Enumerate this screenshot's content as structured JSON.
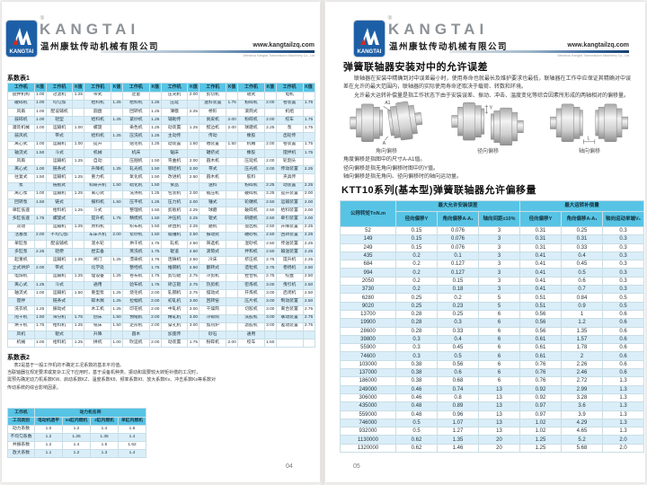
{
  "colors": {
    "accent_cyan": "#57c4e5",
    "row_alt_blue": "#d9eef8",
    "logo_blue": "#1d5fa7",
    "logo_red": "#d42a1e",
    "brand_gray": "#8d9297"
  },
  "brand": {
    "logo_text": "KANGTAI",
    "registered": "®",
    "name_en": "KANGTAI",
    "name_cn": "温州康钛传动机械有限公司",
    "website": "www.kangtailzq.com",
    "tagline": "Wenzhou Kangtai Transmission Machinery Co., Ltd"
  },
  "left_page": {
    "page_number": "04",
    "table1": {
      "title": "系数表1",
      "header": [
        "工作机",
        "K值",
        "工作机",
        "K值",
        "工作机",
        "K值",
        "工作机",
        "K值",
        "工作机",
        "K值",
        "工作机",
        "K值",
        "工作机",
        "K值",
        "工作机",
        "K值"
      ],
      "rows": [
        [
          "搅拌机构",
          "1.00",
          "过滤机",
          "1.25",
          "带式",
          "",
          "定量",
          "",
          "压光机",
          "2.00",
          "剪切机",
          "",
          "辊式",
          "",
          "电机",
          ""
        ],
        [
          "破碎机",
          "1.00",
          "均匀加",
          "",
          "给料机",
          "1.25",
          "给料机",
          "1.25",
          "压延",
          "",
          "送料装置",
          "1.75",
          "粉碎机",
          "2.00",
          "卷装置",
          "1.75"
        ],
        [
          "风扇",
          "1.00",
          "配设辅机",
          "",
          "圆盘",
          "",
          "回转机",
          "1.25",
          "薄膜",
          "2.25",
          "桥形",
          "",
          "滚筒式",
          "",
          "机组",
          ""
        ],
        [
          "鼓碎机",
          "1.00",
          "轻型",
          "",
          "给料机",
          "1.25",
          "紧纱机",
          "1.25",
          "辅助传",
          "",
          "剥皮机",
          "2.00",
          "粉碎机",
          "2.00",
          "绞车",
          "1.75"
        ],
        [
          "灌装机械",
          "1.00",
          "运输机",
          "1.00",
          "螺旋",
          "",
          "染色机",
          "1.25",
          "动装置",
          "1.25",
          "楔边机",
          "2.00",
          "球磨机",
          "2.25",
          "泵",
          "1.75"
        ],
        [
          "鼓风机",
          "",
          "带式",
          "",
          "给料机",
          "1.25",
          "压洗机",
          "1.25",
          "主动传",
          "",
          "传动",
          "",
          "橡胶",
          "",
          "齿轮传",
          ""
        ],
        [
          "离心式",
          "1.00",
          "运输机",
          "1.00",
          "提升",
          "",
          "贴毛机",
          "1.25",
          "动装置",
          "1.50",
          "喂装置",
          "1.50",
          "机械",
          "2.00",
          "卷装置",
          "1.75"
        ],
        [
          "轴流式",
          "1.50",
          "斗式",
          "",
          "机械",
          "",
          "机床",
          "",
          "锯床",
          "",
          "辗挤式",
          "",
          "橡胶",
          "",
          "搅拌机",
          "1.75"
        ],
        [
          "风扇",
          "",
          "运输机",
          "1.25",
          "自动",
          "",
          "压捆机",
          "1.50",
          "弯曲机",
          "2.00",
          "圆木机",
          "",
          "压延机",
          "2.00",
          "轮割头",
          ""
        ],
        [
          "离心式",
          "1.00",
          "链条式",
          "",
          "升降机",
          "1.25",
          "轧光机",
          "1.50",
          "钢坯机",
          "2.00",
          "带式",
          "",
          "压光机",
          "2.00",
          "传动装置",
          "2.25"
        ],
        [
          "往复式",
          "1.50",
          "运输机",
          "1.25",
          "重力机",
          "",
          "氧化机",
          "1.50",
          "改进机",
          "2.50",
          "圆木机",
          "",
          "胶料",
          "",
          "夹具传",
          ""
        ],
        [
          "泵",
          "",
          "链板式",
          "",
          "科研升机",
          "1.50",
          "硫化机",
          "1.50",
          "食品",
          "",
          "送料",
          "",
          "粉碎机",
          "2.25",
          "动装置",
          "2.25"
        ],
        [
          "离心泵",
          "1.00",
          "运输机",
          "1.25",
          "离心式",
          "",
          "洗涤机",
          "1.25",
          "包装机",
          "2.00",
          "锻压机",
          "",
          "破碎机",
          "2.25",
          "提升装置",
          "2.00"
        ],
        [
          "回转泵",
          "1.50",
          "链式",
          "",
          "振料机",
          "1.50",
          "压平机",
          "1.25",
          "压力机",
          "2.00",
          "锤式",
          "",
          "轮碾机",
          "2.50",
          "运输装置",
          "2.00"
        ],
        [
          "单缸低速",
          "",
          "给料机",
          "1.25",
          "斗式",
          "",
          "整理机",
          "1.50",
          "剪板机",
          "2.25",
          "球磨",
          "",
          "破碎机",
          "2.50",
          "给料装置",
          "2.00"
        ],
        [
          "多缸低速",
          "1.75",
          "螺旋式",
          "",
          "提升机",
          "1.75",
          "精梳机",
          "1.50",
          "冲压机",
          "2.25",
          "辊式",
          "",
          "研磨机",
          "2.50",
          "牵引装置",
          "2.00"
        ],
        [
          "双动",
          "",
          "运输机",
          "1.25",
          "原料机",
          "",
          "织布机",
          "1.50",
          "矫直机",
          "2.25",
          "磨机",
          "",
          "搅齿机",
          "2.50",
          "升降装置",
          "2.25"
        ],
        [
          "活塞泵",
          "2.00",
          "不均匀加",
          "",
          "车床齐机",
          "2.00",
          "浆纱机",
          "1.50",
          "锻锤机",
          "2.50",
          "振动式",
          "",
          "碾砂机",
          "2.50",
          "回转装置",
          "2.25"
        ],
        [
          "单缸泵",
          "",
          "配设辅机",
          "",
          "泥水轮",
          "",
          "烘干机",
          "1.75",
          "轧机",
          "2.50",
          "筛选机",
          "",
          "混砂机",
          "2.50",
          "传送装置",
          "2.25"
        ],
        [
          "多缸泵",
          "2.25",
          "轻便",
          "",
          "捏实备",
          "",
          "蒸洗机",
          "1.75",
          "辊道",
          "2.50",
          "滚筒式",
          "",
          "拌和机",
          "2.50",
          "输送装置",
          "2.25"
        ],
        [
          "起重机",
          "",
          "运输机",
          "1.25",
          "闸门",
          "1.25",
          "漂染机",
          "1.75",
          "连铸机",
          "2.50",
          "冷床",
          "",
          "挤压机",
          "2.75",
          "提升机",
          "2.25"
        ],
        [
          "立式烘炉",
          "2.00",
          "带式",
          "",
          "化学处",
          "",
          "整经机",
          "1.75",
          "推钢机",
          "2.50",
          "翻转式",
          "",
          "造粒机",
          "2.75",
          "卷扬机",
          "2.50"
        ],
        [
          "电焊机",
          "",
          "运输机",
          "1.25",
          "理设备",
          "1.25",
          "卷布机",
          "1.75",
          "剪切辊",
          "2.75",
          "冷剪机",
          "",
          "捏合机",
          "2.75",
          "绞盘",
          "2.50"
        ],
        [
          "离心式",
          "1.25",
          "斗式",
          "",
          "通用",
          "",
          "验布机",
          "1.75",
          "矫正辊",
          "2.75",
          "热剪机",
          "",
          "密炼机",
          "3.00",
          "曳引机",
          "2.50"
        ],
        [
          "轴流式",
          "1.00",
          "运输机",
          "1.50",
          "重型泵",
          "1.25",
          "烧毛机",
          "2.00",
          "轧钢机",
          "2.75",
          "摆动式",
          "",
          "开炼机",
          "3.00",
          "启闭机",
          "2.50"
        ],
        [
          "搅拌",
          "",
          "链条式",
          "",
          "碎木屑",
          "1.25",
          "拉幅机",
          "2.00",
          "初轧机",
          "3.00",
          "回转窑",
          "",
          "压片机",
          "3.00",
          "制动装置",
          "2.50"
        ],
        [
          "洗衣机",
          "1.25",
          "振动式",
          "",
          "木工机",
          "1.25",
          "印花机",
          "2.00",
          "中轧机",
          "3.00",
          "干燥筒",
          "",
          "切胶机",
          "3.00",
          "离合装置",
          "2.75"
        ],
        [
          "甩干机",
          "1.50",
          "筛分机",
          "1.75",
          "刨床",
          "1.50",
          "预缩机",
          "2.00",
          "精轧机",
          "3.00",
          "冷却筒",
          "",
          "洗胶机",
          "3.00",
          "联动装置",
          "2.75"
        ],
        [
          "烘干机",
          "1.75",
          "给料机",
          "1.25",
          "铣床",
          "1.50",
          "定形机",
          "2.00",
          "穿孔机",
          "3.00",
          "加热炉",
          "",
          "滤胶机",
          "3.00",
          "差动装置",
          "2.75"
        ],
        [
          "风机",
          "",
          "辊式",
          "",
          "升降",
          "",
          "圆木",
          "",
          "加宽传",
          "",
          "砂石",
          "",
          "通用",
          "",
          "",
          ""
        ],
        [
          "机械",
          "1.00",
          "给料机",
          "1.25",
          "拼机",
          "1.00",
          "吹运机",
          "2.00",
          "动装置",
          "1.75",
          "粉碎机",
          "2.00",
          "绞车",
          "1.50",
          "",
          ""
        ]
      ]
    },
    "notes2": {
      "title": "系数表2",
      "lines": [
        "表2是基于一般工作机的不确定工况系数的基本平均值。",
        "当联轴器在规定要求或复杂工况下应用时，基于设备机种类、振动和需要较大转矩补偿的工况时，",
        "需预先确定动力机系数KW、启动系数KZ、温度系数Kθ、频率系数Kf、放大系数Kv、冲击系数Ks等系数对",
        "传动系统的综合影响因素。"
      ]
    },
    "table2": {
      "corner": "工作机",
      "group": "动力机名称",
      "sub": [
        "工况类别",
        "电动机透平",
        "≥4缸内燃机",
        "2缸内燃机",
        "单缸内燃机"
      ],
      "rows": [
        [
          "动力系数",
          "1.0",
          "1.2",
          "1.4",
          "1.6"
        ],
        [
          "不均匀系数",
          "1.2",
          "1.25",
          "1.35",
          "1.4"
        ],
        [
          "共振系数",
          "1.2",
          "1.4",
          "1.5",
          "1.62"
        ],
        [
          "放大系数",
          "1.1",
          "1.2",
          "1.3",
          "1.4"
        ]
      ]
    }
  },
  "right_page": {
    "page_number": "05",
    "section1": {
      "title": "弹簧联轴器安装对中的允许误差",
      "para1": "联轴器在安装中精确到对中误差最小时，使用寿命也就最长及维护要求也最低，联轴器在工作中应保证其精确对中误差在允许的最大范围内，联轴器的实际使用寿命还取决于载荷、转数和环境。",
      "para2": "允许最大运转补偿量是指工作状态下由于安装误差、振动、冲击、温度变化等综合因素所形成的两轴相对的偏移量。",
      "diagrams": [
        {
          "caption": "角向偏移",
          "dim_top": "A1",
          "dim_bottom": "A"
        },
        {
          "caption": "径向偏移",
          "dim": "Y"
        },
        {
          "caption": "轴向偏移",
          "dim": "L"
        }
      ],
      "notes": [
        "角度偏移是指图中的尺寸A-A1值。",
        "径向偏移是指无角向偏移时图中的Y值。",
        "轴向偏移是指无角向、径向偏移时的轴向运动量。"
      ]
    },
    "section2": {
      "title": "KTT10系列(基本型)弹簧联轴器允许偏移量",
      "table": {
        "col0": "公称转矩TnN.m",
        "group1": "最大允许安装误差",
        "group2": "最大运转补偿量",
        "sub1": [
          "径向偏移Y",
          "角向偏移A-A₁",
          "轴向间距±10%"
        ],
        "sub2": [
          "径向偏移Y",
          "角向偏移A-A₁",
          "轴向运动单端V₁"
        ],
        "rows": [
          [
            "52",
            "0.15",
            "0.076",
            "3",
            "0.31",
            "0.25",
            "0.3"
          ],
          [
            "149",
            "0.15",
            "0.076",
            "3",
            "0.31",
            "0.31",
            "0.3"
          ],
          [
            "249",
            "0.15",
            "0.076",
            "3",
            "0.31",
            "0.33",
            "0.3"
          ],
          [
            "435",
            "0.2",
            "0.1",
            "3",
            "0.41",
            "0.4",
            "0.3"
          ],
          [
            "684",
            "0.2",
            "0.127",
            "3",
            "0.41",
            "0.45",
            "0.3"
          ],
          [
            "994",
            "0.2",
            "0.127",
            "3",
            "0.41",
            "0.5",
            "0.3"
          ],
          [
            "2050",
            "0.2",
            "0.15",
            "3",
            "0.41",
            "0.6",
            "0.3"
          ],
          [
            "3730",
            "0.2",
            "0.18",
            "3",
            "0.41",
            "0.7",
            "0.3"
          ],
          [
            "6280",
            "0.25",
            "0.2",
            "5",
            "0.51",
            "0.84",
            "0.5"
          ],
          [
            "9020",
            "0.25",
            "0.23",
            "5",
            "0.51",
            "0.9",
            "0.5"
          ],
          [
            "13700",
            "0.28",
            "0.25",
            "6",
            "0.56",
            "1",
            "0.6"
          ],
          [
            "19900",
            "0.28",
            "0.3",
            "6",
            "0.56",
            "1.2",
            "0.6"
          ],
          [
            "28600",
            "0.28",
            "0.33",
            "6",
            "0.56",
            "1.35",
            "0.6"
          ],
          [
            "39800",
            "0.3",
            "0.4",
            "6",
            "0.61",
            "1.57",
            "0.6"
          ],
          [
            "55900",
            "0.3",
            "0.45",
            "6",
            "0.61",
            "1.78",
            "0.6"
          ],
          [
            "74600",
            "0.3",
            "0.5",
            "6",
            "0.61",
            "2",
            "0.6"
          ],
          [
            "103000",
            "0.38",
            "0.56",
            "6",
            "0.76",
            "2.26",
            "0.6"
          ],
          [
            "137000",
            "0.38",
            "0.6",
            "6",
            "0.76",
            "2.46",
            "0.6"
          ],
          [
            "186000",
            "0.38",
            "0.68",
            "6",
            "0.76",
            "2.72",
            "1.3"
          ],
          [
            "249000",
            "0.46",
            "0.74",
            "13",
            "0.92",
            "2.99",
            "1.3"
          ],
          [
            "306000",
            "0.46",
            "0.8",
            "13",
            "0.92",
            "3.28",
            "1.3"
          ],
          [
            "435000",
            "0.48",
            "0.89",
            "13",
            "0.97",
            "3.6",
            "1.3"
          ],
          [
            "559000",
            "0.48",
            "0.96",
            "13",
            "0.97",
            "3.9",
            "1.3"
          ],
          [
            "746000",
            "0.5",
            "1.07",
            "13",
            "1.02",
            "4.29",
            "1.3"
          ],
          [
            "932000",
            "0.5",
            "1.27",
            "13",
            "1.02",
            "4.65",
            "1.3"
          ],
          [
            "1130000",
            "0.62",
            "1.35",
            "20",
            "1.25",
            "5.2",
            "2.0"
          ],
          [
            "1320000",
            "0.62",
            "1.46",
            "20",
            "1.25",
            "5.68",
            "2.0"
          ]
        ]
      }
    }
  }
}
